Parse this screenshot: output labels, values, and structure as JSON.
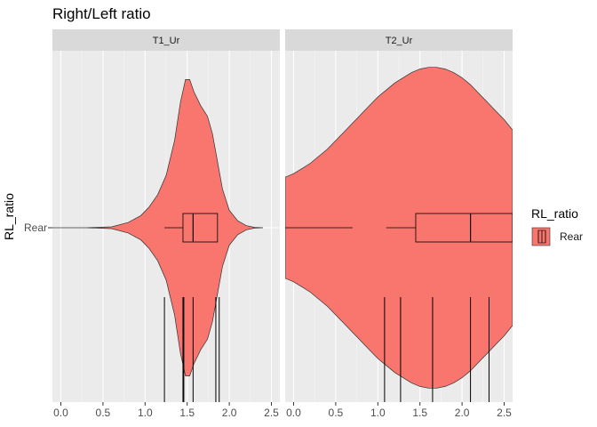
{
  "title": "Right/Left ratio",
  "ylabel": "RL_ratio",
  "legend": {
    "title": "RL_ratio",
    "label": "Rear",
    "fill": "#F8766D"
  },
  "chart_data": {
    "type": "violin",
    "category": "Rear",
    "fill": "#F8766D",
    "xlim": [
      -0.1,
      2.6
    ],
    "xticks": [
      0.0,
      0.5,
      1.0,
      1.5,
      2.0,
      2.5
    ],
    "xtick_labels": [
      "0.0",
      "0.5",
      "1.0",
      "1.5",
      "2.0",
      "2.5"
    ],
    "grid": true,
    "legend_position": "right",
    "panels": [
      {
        "name": "T1_Ur",
        "density": [
          [
            -0.1,
            0
          ],
          [
            0.3,
            0
          ],
          [
            0.6,
            0.005
          ],
          [
            0.8,
            0.03
          ],
          [
            0.95,
            0.07
          ],
          [
            1.05,
            0.12
          ],
          [
            1.15,
            0.19
          ],
          [
            1.25,
            0.3
          ],
          [
            1.35,
            0.5
          ],
          [
            1.42,
            0.72
          ],
          [
            1.48,
            0.85
          ],
          [
            1.53,
            0.85
          ],
          [
            1.58,
            0.78
          ],
          [
            1.66,
            0.7
          ],
          [
            1.74,
            0.64
          ],
          [
            1.8,
            0.54
          ],
          [
            1.86,
            0.38
          ],
          [
            1.92,
            0.22
          ],
          [
            2.0,
            0.1
          ],
          [
            2.1,
            0.04
          ],
          [
            2.2,
            0.012
          ],
          [
            2.3,
            0.002
          ],
          [
            2.4,
            0
          ]
        ],
        "boxplot": {
          "whisker_low": 1.23,
          "q1": 1.45,
          "median": 1.57,
          "q3": 1.86,
          "whisker_high": 1.86
        },
        "observations": [
          1.23,
          1.45,
          1.46,
          1.57,
          1.84,
          1.88
        ]
      },
      {
        "name": "T2_Ur",
        "density": [
          [
            -0.1,
            0.29
          ],
          [
            0.0,
            0.31
          ],
          [
            0.1,
            0.34
          ],
          [
            0.2,
            0.37
          ],
          [
            0.3,
            0.41
          ],
          [
            0.4,
            0.45
          ],
          [
            0.5,
            0.5
          ],
          [
            0.6,
            0.55
          ],
          [
            0.7,
            0.6
          ],
          [
            0.8,
            0.65
          ],
          [
            0.9,
            0.7
          ],
          [
            1.0,
            0.75
          ],
          [
            1.1,
            0.79
          ],
          [
            1.2,
            0.83
          ],
          [
            1.3,
            0.86
          ],
          [
            1.4,
            0.89
          ],
          [
            1.5,
            0.91
          ],
          [
            1.6,
            0.92
          ],
          [
            1.7,
            0.92
          ],
          [
            1.8,
            0.91
          ],
          [
            1.9,
            0.89
          ],
          [
            2.0,
            0.86
          ],
          [
            2.1,
            0.82
          ],
          [
            2.2,
            0.77
          ],
          [
            2.3,
            0.72
          ],
          [
            2.4,
            0.67
          ],
          [
            2.5,
            0.62
          ],
          [
            2.6,
            0.56
          ]
        ],
        "boxplot": {
          "whisker_low": -0.1,
          "whisker_low_end": 0.7,
          "q1": 1.45,
          "median": 2.1,
          "q3": 2.6,
          "whisker_high": 2.6,
          "outlier_segment": [
            1.1,
            1.45
          ]
        },
        "observations": [
          1.08,
          1.27,
          1.65,
          2.1,
          2.32
        ]
      }
    ]
  }
}
